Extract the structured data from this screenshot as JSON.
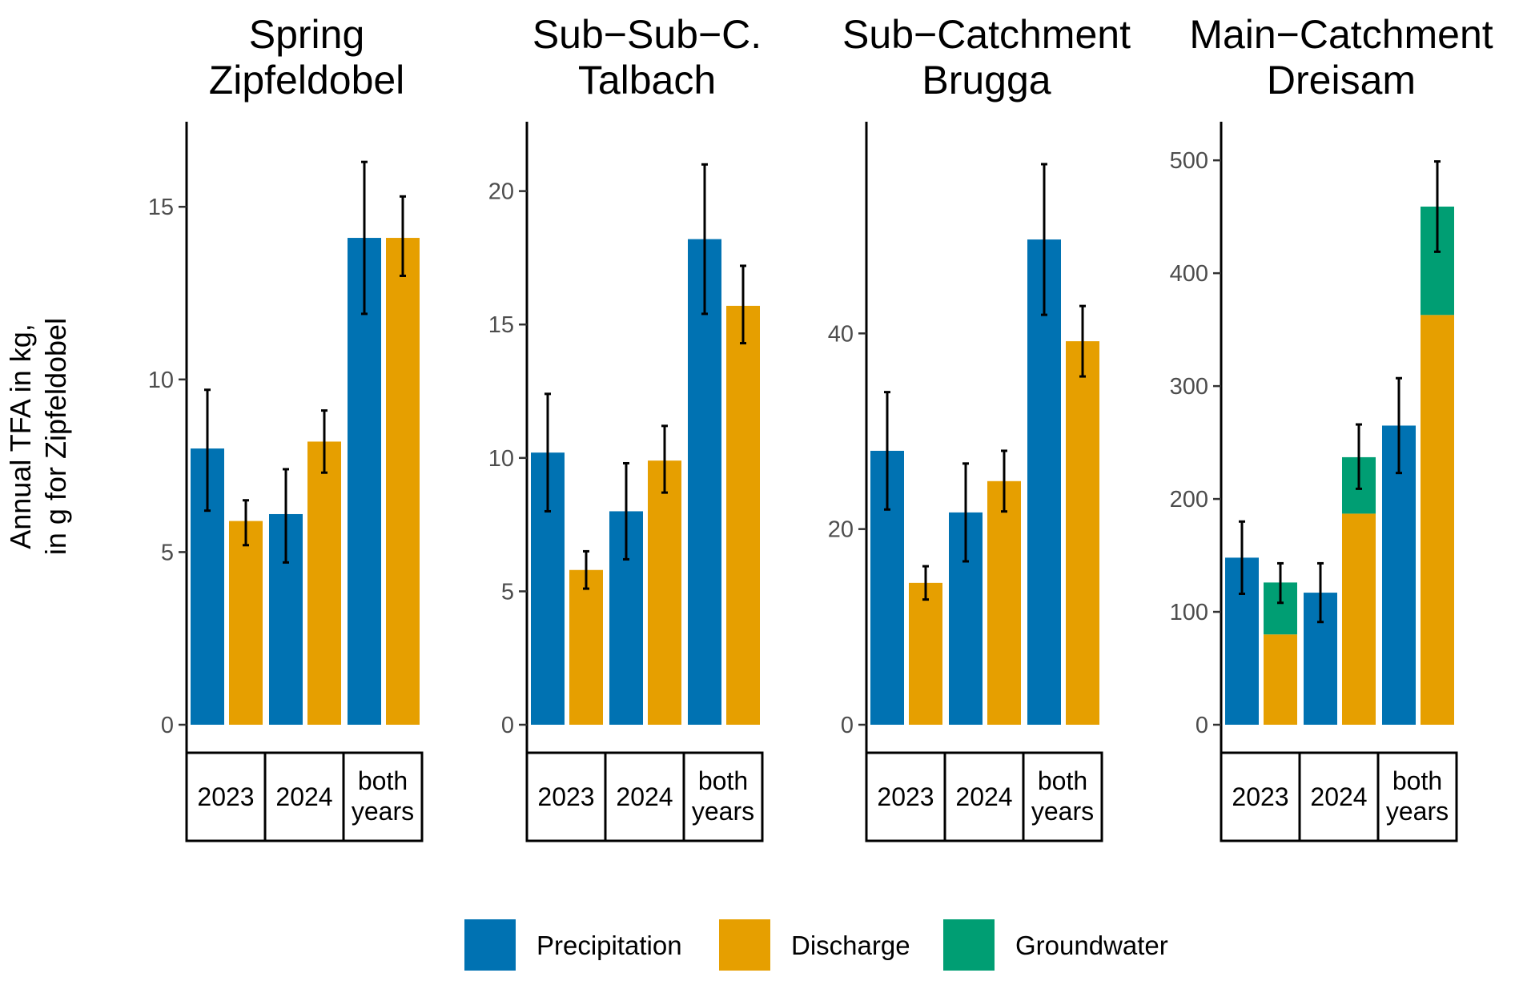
{
  "chart_data": {
    "type": "bar",
    "ylabel_lines": [
      "Annual TFA in kg,",
      "in g for Zipfeldobel"
    ],
    "colors": {
      "Precipitation": "#0072B2",
      "Discharge": "#E69F00",
      "Groundwater": "#009E73"
    },
    "legend": {
      "position": "bottom",
      "items": [
        {
          "key": "Precipitation",
          "label": "Precipitation"
        },
        {
          "key": "Discharge",
          "label": "Discharge"
        },
        {
          "key": "Groundwater",
          "label": "Groundwater"
        }
      ]
    },
    "panels": [
      {
        "title_lines": [
          "Spring",
          "Zipfeldobel"
        ],
        "ylim": [
          0,
          17
        ],
        "yticks": [
          0,
          5,
          10,
          15
        ],
        "groups": [
          {
            "label_lines": [
              "2023"
            ],
            "bars": [
              {
                "series": "Precipitation",
                "value": 8.0,
                "err": [
                  6.2,
                  9.7
                ]
              },
              {
                "series": "Discharge",
                "value": 5.9,
                "err": [
                  5.2,
                  6.5
                ]
              }
            ]
          },
          {
            "label_lines": [
              "2024"
            ],
            "bars": [
              {
                "series": "Precipitation",
                "value": 6.1,
                "err": [
                  4.7,
                  7.4
                ]
              },
              {
                "series": "Discharge",
                "value": 8.2,
                "err": [
                  7.3,
                  9.1
                ]
              }
            ]
          },
          {
            "label_lines": [
              "both",
              "years"
            ],
            "bars": [
              {
                "series": "Precipitation",
                "value": 14.1,
                "err": [
                  11.9,
                  16.3
                ]
              },
              {
                "series": "Discharge",
                "value": 14.1,
                "err": [
                  13.0,
                  15.3
                ]
              }
            ]
          }
        ]
      },
      {
        "title_lines": [
          "Sub−Sub−C.",
          "Talbach"
        ],
        "ylim": [
          0,
          22
        ],
        "yticks": [
          0,
          5,
          10,
          15,
          20
        ],
        "groups": [
          {
            "label_lines": [
              "2023"
            ],
            "bars": [
              {
                "series": "Precipitation",
                "value": 10.2,
                "err": [
                  8.0,
                  12.4
                ]
              },
              {
                "series": "Discharge",
                "value": 5.8,
                "err": [
                  5.1,
                  6.5
                ]
              }
            ]
          },
          {
            "label_lines": [
              "2024"
            ],
            "bars": [
              {
                "series": "Precipitation",
                "value": 8.0,
                "err": [
                  6.2,
                  9.8
                ]
              },
              {
                "series": "Discharge",
                "value": 9.9,
                "err": [
                  8.7,
                  11.2
                ]
              }
            ]
          },
          {
            "label_lines": [
              "both",
              "years"
            ],
            "bars": [
              {
                "series": "Precipitation",
                "value": 18.2,
                "err": [
                  15.4,
                  21.0
                ]
              },
              {
                "series": "Discharge",
                "value": 15.7,
                "err": [
                  14.3,
                  17.2
                ]
              }
            ]
          }
        ]
      },
      {
        "title_lines": [
          "Sub−Catchment",
          "Brugga"
        ],
        "ylim": [
          0,
          60
        ],
        "yticks": [
          0,
          20,
          40
        ],
        "groups": [
          {
            "label_lines": [
              "2023"
            ],
            "bars": [
              {
                "series": "Precipitation",
                "value": 28.0,
                "err": [
                  22.0,
                  34.0
                ]
              },
              {
                "series": "Discharge",
                "value": 14.5,
                "err": [
                  12.8,
                  16.2
                ]
              }
            ]
          },
          {
            "label_lines": [
              "2024"
            ],
            "bars": [
              {
                "series": "Precipitation",
                "value": 21.7,
                "err": [
                  16.7,
                  26.7
                ]
              },
              {
                "series": "Discharge",
                "value": 24.9,
                "err": [
                  21.8,
                  28.0
                ]
              }
            ]
          },
          {
            "label_lines": [
              "both",
              "years"
            ],
            "bars": [
              {
                "series": "Precipitation",
                "value": 49.6,
                "err": [
                  41.9,
                  57.3
                ]
              },
              {
                "series": "Discharge",
                "value": 39.2,
                "err": [
                  35.6,
                  42.8
                ]
              }
            ]
          }
        ]
      },
      {
        "title_lines": [
          "Main−Catchment",
          "Dreisam"
        ],
        "ylim": [
          0,
          520
        ],
        "yticks": [
          0,
          100,
          200,
          300,
          400,
          500
        ],
        "groups": [
          {
            "label_lines": [
              "2023"
            ],
            "bars": [
              {
                "series": "Precipitation",
                "value": 148,
                "err": [
                  116,
                  180
                ]
              },
              {
                "series": "Discharge",
                "value": 80,
                "stack": [
                  {
                    "series": "Groundwater",
                    "value": 46
                  }
                ],
                "err": [
                  108,
                  143
                ]
              }
            ]
          },
          {
            "label_lines": [
              "2024"
            ],
            "bars": [
              {
                "series": "Precipitation",
                "value": 117,
                "err": [
                  91,
                  143
                ]
              },
              {
                "series": "Discharge",
                "value": 187,
                "stack": [
                  {
                    "series": "Groundwater",
                    "value": 50
                  }
                ],
                "err": [
                  209,
                  266
                ]
              }
            ]
          },
          {
            "label_lines": [
              "both",
              "years"
            ],
            "bars": [
              {
                "series": "Precipitation",
                "value": 265,
                "err": [
                  223,
                  307
                ]
              },
              {
                "series": "Discharge",
                "value": 363,
                "stack": [
                  {
                    "series": "Groundwater",
                    "value": 96
                  }
                ],
                "err": [
                  419,
                  499
                ]
              }
            ]
          }
        ]
      }
    ]
  }
}
